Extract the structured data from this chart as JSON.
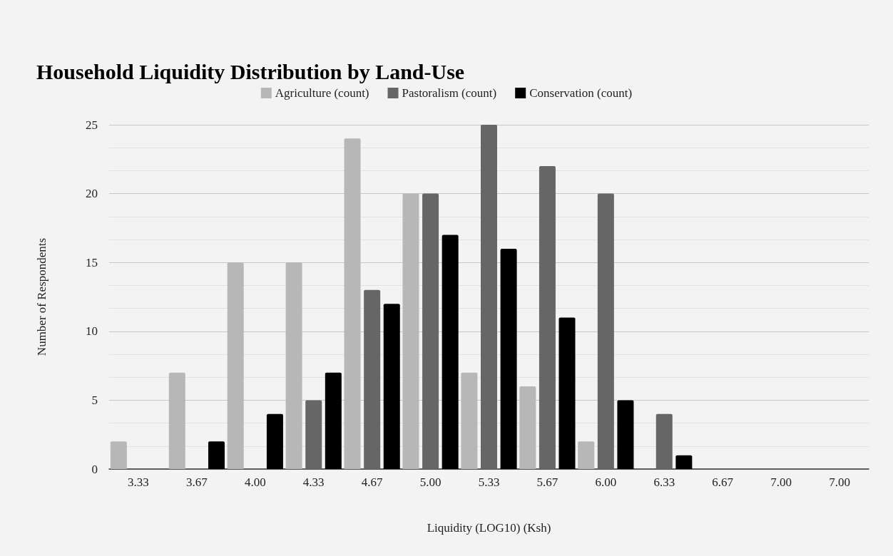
{
  "chart_data": {
    "type": "bar",
    "title": "Household Liquidity Distribution by Land-Use",
    "xlabel": "Liquidity (LOG10) (Ksh)",
    "ylabel": "Number of Respondents",
    "categories": [
      "3.33",
      "3.67",
      "4.00",
      "4.33",
      "4.67",
      "5.00",
      "5.33",
      "5.67",
      "6.00",
      "6.33",
      "6.67",
      "7.00",
      "7.00"
    ],
    "series": [
      {
        "name": "Agriculture (count)",
        "color": "#b7b7b7",
        "values": [
          2,
          7,
          15,
          15,
          24,
          20,
          7,
          6,
          2,
          0,
          0,
          0,
          0
        ]
      },
      {
        "name": "Pastoralism (count)",
        "color": "#666666",
        "values": [
          0,
          0,
          0,
          5,
          13,
          20,
          25,
          22,
          20,
          4,
          0,
          0,
          0
        ]
      },
      {
        "name": "Conservation (count)",
        "color": "#000000",
        "values": [
          0,
          2,
          4,
          7,
          12,
          17,
          16,
          11,
          5,
          1,
          0,
          0,
          0
        ]
      }
    ],
    "ylim": [
      0,
      25
    ],
    "yticks": [
      0,
      5,
      10,
      15,
      20,
      25
    ],
    "grid": "y",
    "legend": "top"
  }
}
